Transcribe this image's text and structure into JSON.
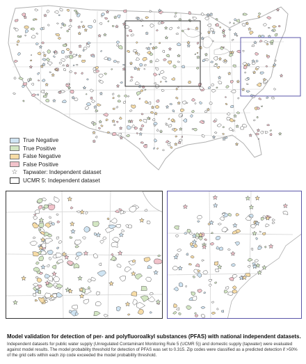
{
  "legend": {
    "items": [
      {
        "label": "True Negative",
        "color": "#cfe4f3"
      },
      {
        "label": "True Positive",
        "color": "#d3e6c3"
      },
      {
        "label": "False Negative",
        "color": "#f7dca6"
      },
      {
        "label": "False Positive",
        "color": "#f2c3cb"
      }
    ],
    "tapwater_label": "Tapwater:  Independent dataset",
    "ucmr_label": "UCMR 5:  Independent dataset"
  },
  "colors": {
    "state_border": "#bdbdbd",
    "land": "#ffffff",
    "zip_outline": "#555555",
    "extent_left": "#333333",
    "extent_right": "#5a56a8",
    "star_stroke": "#555555"
  },
  "caption": {
    "title": "Model validation for detection of per- and polyfluoroalkyl substances (PFAS) with national independent datasets.",
    "body": "Independent datasets for public water supply (Unregulated Contaminant Monitoring Rule 5 (UCMR 5)) and domestic supply (tapwater) were evaluated against model results. The model probability threshold for detection of PFAS was set to 0.315. Zip codes were classified as a predicted detection if >50% of the grid cells within each zip code exceeded the model probability threshold."
  }
}
